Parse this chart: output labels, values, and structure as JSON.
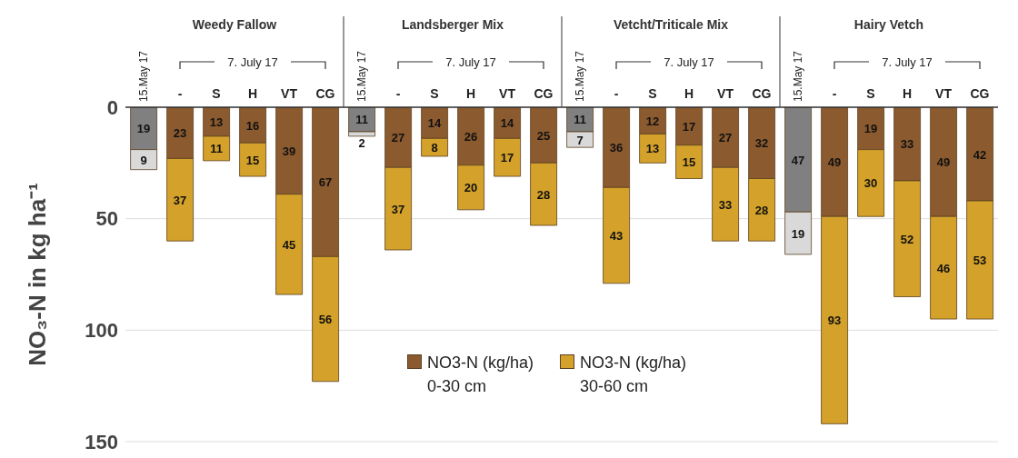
{
  "chart_data": {
    "type": "bar",
    "stacked": true,
    "ylabel": "NO₃-N in kg ha⁻¹",
    "categories": [
      "15.May 17",
      "-",
      "S",
      "H",
      "VT",
      "CG",
      "15.May 17",
      "-",
      "S",
      "H",
      "VT",
      "CG",
      "15.May 17",
      "-",
      "S",
      "H",
      "VT",
      "CG",
      "15.May 17",
      "-",
      "S",
      "H",
      "VT",
      "CG"
    ],
    "annotations": [
      "Weedy Fallow",
      "Landsberger Mix",
      "Vetcht/Triticale Mix",
      "Hairy Vetch",
      "7. July 17",
      "7. July 17",
      "7. July 17",
      "7. July 17"
    ],
    "series": [
      {
        "name": "NO3-N (kg/ha) 0-30 cm",
        "color": "#8b5a2f",
        "colors": [
          "#808080",
          "#8b5a2f",
          "#8b5a2f",
          "#8b5a2f",
          "#8b5a2f",
          "#8b5a2f",
          "#808080",
          "#8b5a2f",
          "#8b5a2f",
          "#8b5a2f",
          "#8b5a2f",
          "#8b5a2f",
          "#808080",
          "#8b5a2f",
          "#8b5a2f",
          "#8b5a2f",
          "#8b5a2f",
          "#8b5a2f",
          "#808080",
          "#8b5a2f",
          "#8b5a2f",
          "#8b5a2f",
          "#8b5a2f",
          "#8b5a2f"
        ],
        "values": [
          19,
          23,
          13,
          16,
          39,
          67,
          11,
          27,
          14,
          26,
          14,
          25,
          11,
          36,
          12,
          17,
          27,
          32,
          47,
          49,
          19,
          33,
          49,
          42
        ]
      },
      {
        "name": "NO3-N (kg/ha) 30-60 cm",
        "color": "#d4a12a",
        "colors": [
          "#d9d9d9",
          "#d4a12a",
          "#d4a12a",
          "#d4a12a",
          "#d4a12a",
          "#d4a12a",
          "#d9d9d9",
          "#d4a12a",
          "#d4a12a",
          "#d4a12a",
          "#d4a12a",
          "#d4a12a",
          "#d9d9d9",
          "#d4a12a",
          "#d4a12a",
          "#d4a12a",
          "#d4a12a",
          "#d4a12a",
          "#d9d9d9",
          "#d4a12a",
          "#d4a12a",
          "#d4a12a",
          "#d4a12a",
          "#d4a12a"
        ],
        "values": [
          9,
          37,
          11,
          15,
          45,
          56,
          2,
          37,
          8,
          20,
          17,
          28,
          7,
          43,
          13,
          15,
          33,
          28,
          19,
          93,
          30,
          52,
          46,
          53
        ]
      }
    ],
    "ylim": [
      150,
      0
    ],
    "yticks": [
      0,
      50,
      100,
      150
    ],
    "grid": "y",
    "legend": "bottom",
    "data_labels": true
  }
}
